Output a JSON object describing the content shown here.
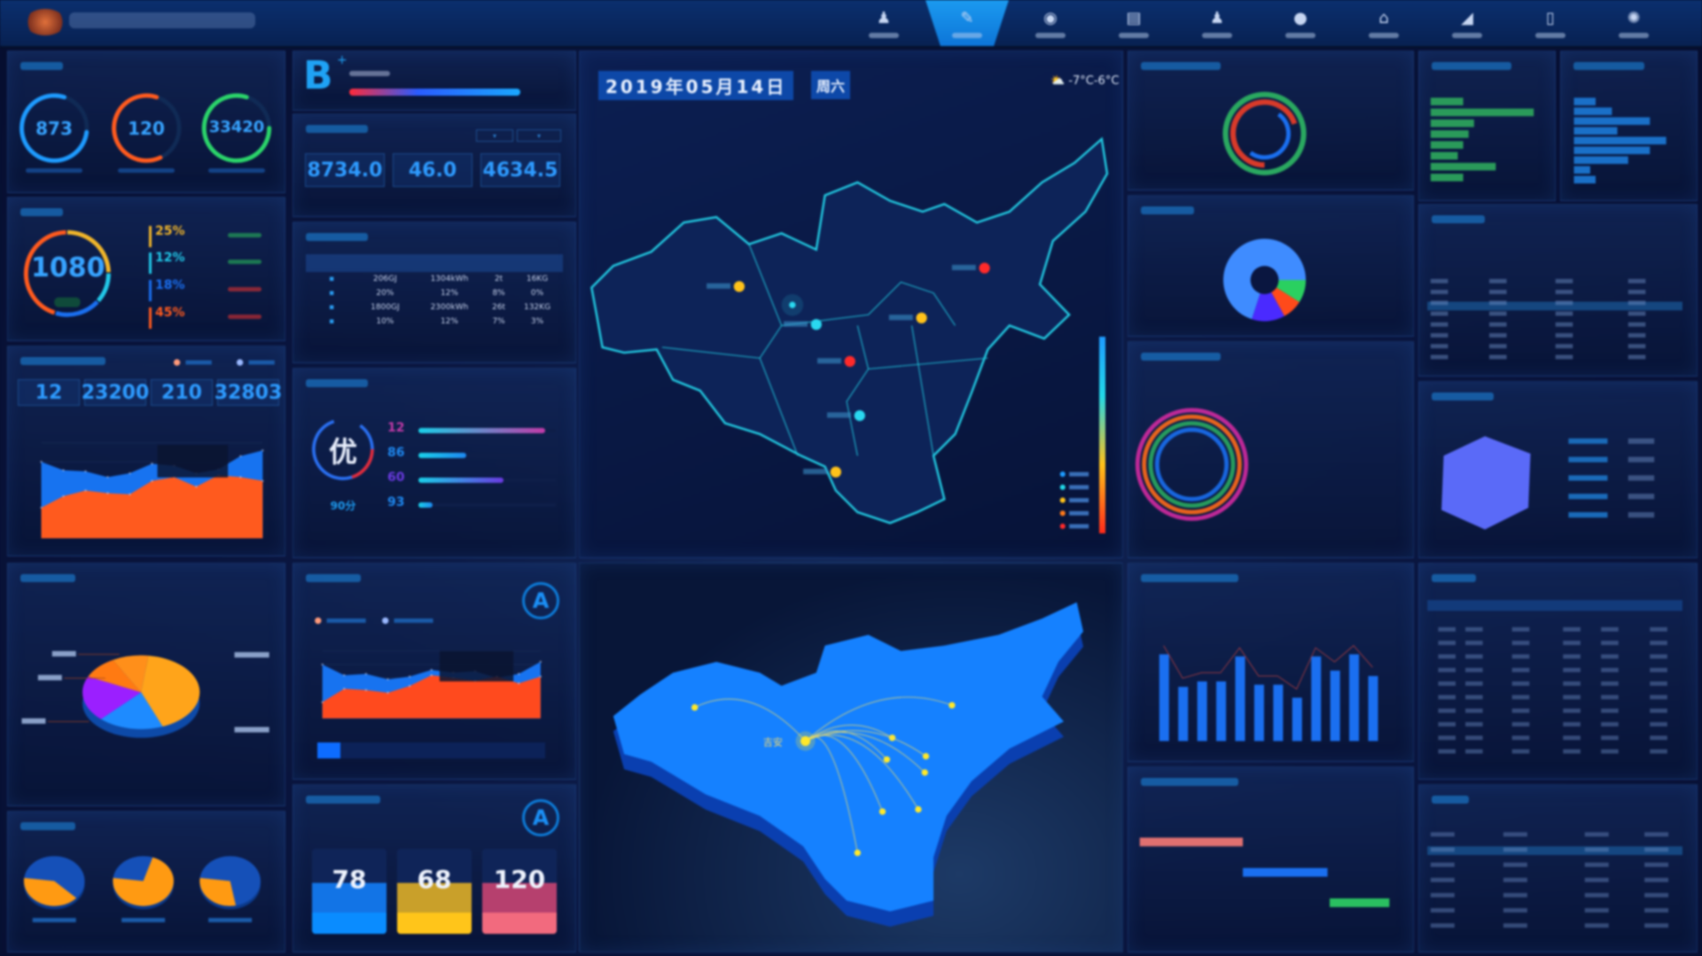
{
  "nav": {
    "active_index": 1,
    "items": [
      {
        "icon": "user-icon"
      },
      {
        "icon": "pen-icon"
      },
      {
        "icon": "chat-icon"
      },
      {
        "icon": "document-icon"
      },
      {
        "icon": "person-icon"
      },
      {
        "icon": "drop-icon"
      },
      {
        "icon": "home-icon"
      },
      {
        "icon": "chart-icon"
      },
      {
        "icon": "phone-icon"
      },
      {
        "icon": "settings-icon"
      }
    ]
  },
  "left": {
    "rings": [
      {
        "value": "873",
        "color": "#1e9bff",
        "pct": 0.78
      },
      {
        "value": "120",
        "color": "#ff5a1e",
        "pct": 0.62
      },
      {
        "value": "33420",
        "color": "#2bd46a",
        "pct": 0.8
      }
    ],
    "cost": {
      "value": "1080",
      "segments": [
        {
          "pct": 25,
          "color": "#f0b52a"
        },
        {
          "pct": 12,
          "color": "#22c8e8"
        },
        {
          "pct": 18,
          "color": "#1a6ff0"
        },
        {
          "pct": 45,
          "color": "#ff5a1e"
        }
      ]
    },
    "stats": [
      "12",
      "23200",
      "210",
      "32803"
    ],
    "area": {
      "type": "area",
      "ylim": [
        0,
        250
      ],
      "series": [
        {
          "color": "#1773f0",
          "values": [
            200,
            178,
            175,
            160,
            170,
            195,
            190,
            170,
            180,
            215,
            230
          ]
        },
        {
          "color": "#ff5a1e",
          "values": [
            80,
            110,
            125,
            118,
            115,
            150,
            160,
            135,
            165,
            160,
            150
          ]
        }
      ]
    },
    "pie": {
      "type": "pie",
      "values": [
        42,
        18,
        20,
        10,
        10
      ],
      "colors": [
        "#ffa41a",
        "#1e8bff",
        "#9b1fff",
        "#ff7a12",
        "#ff8f1a"
      ]
    },
    "minipies": [
      {
        "pct": 0.38
      },
      {
        "pct": 0.7
      },
      {
        "pct": 0.28
      }
    ]
  },
  "mid": {
    "grade": "B",
    "grade_sup": "+",
    "energy_values": [
      "8734.0",
      "46.0",
      "4634.5"
    ],
    "daily_rows": [
      [
        "206GJ",
        "1304kWh",
        "2t",
        "16KG"
      ],
      [
        "20%",
        "12%",
        "8%",
        "0%"
      ],
      [
        "1800GJ",
        "2300kWh",
        "26t",
        "132KG"
      ],
      [
        "10%",
        "12%",
        "7%",
        "3%"
      ]
    ],
    "eval": {
      "grade": "优",
      "score": "90分",
      "bars": [
        {
          "value": "12",
          "fill": 0.92,
          "color": "#c13aa8"
        },
        {
          "value": "86",
          "fill": 0.35,
          "color": "#1e88f0"
        },
        {
          "value": "60",
          "fill": 0.62,
          "color": "#6a3ae0"
        },
        {
          "value": "93",
          "fill": 0.1,
          "color": "#1e88f0"
        }
      ]
    },
    "quality_badge": "A",
    "quality_area": {
      "type": "area",
      "ylim": [
        0,
        5
      ],
      "series": [
        {
          "color": "#1773f0",
          "values": [
            4,
            3.2,
            3.3,
            2.9,
            3.1,
            3.6,
            3.4,
            3.5,
            3.0,
            3.3,
            4.2
          ]
        },
        {
          "color": "#ff4a1e",
          "values": [
            1.2,
            2.2,
            2.1,
            1.9,
            2.4,
            3.2,
            3.0,
            2.8,
            3.1,
            2.6,
            3.1
          ]
        }
      ]
    },
    "equip_badge": "A",
    "cards": [
      {
        "value": "78",
        "color": "#1274e6",
        "foot": "#0a8cff"
      },
      {
        "value": "68",
        "color": "#c9a02a",
        "foot": "#ffc51a"
      },
      {
        "value": "120",
        "color": "#b6406e",
        "foot": "#f26a7e"
      }
    ]
  },
  "map": {
    "date": "2019年05月14日",
    "weekday": "周六",
    "weather": "-7°C-6°C",
    "center_label": "吉安",
    "markers": [
      {
        "color": "#2ad8f0"
      },
      {
        "color": "#ff2a2a"
      },
      {
        "color": "#ffc21a"
      },
      {
        "color": "#ff2a2a"
      },
      {
        "color": "#ffc21a"
      },
      {
        "color": "#2ad8f0"
      },
      {
        "color": "#ffc21a"
      }
    ],
    "legend_colors": [
      "#1e9bff",
      "#22d8e8",
      "#ffc21a",
      "#ff7a1a",
      "#ff2a2a"
    ]
  },
  "right": {
    "bars": [
      0.8,
      0.5,
      0.55,
      0.55,
      0.78,
      0.52,
      0.52,
      0.4,
      0.78,
      0.65,
      0.8,
      0.6
    ]
  }
}
